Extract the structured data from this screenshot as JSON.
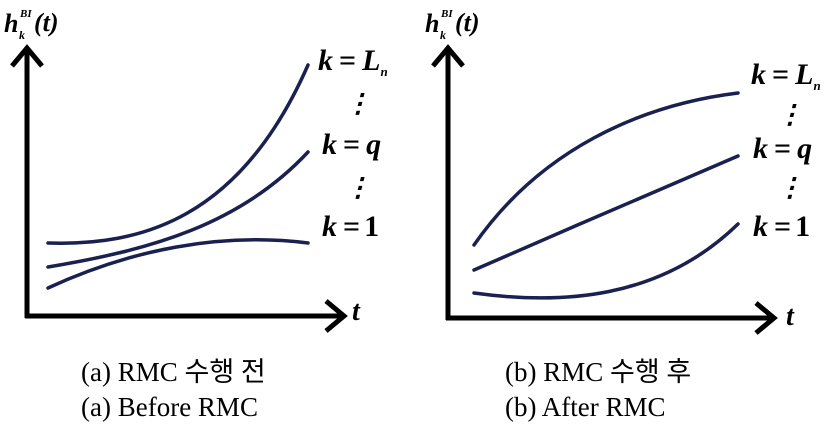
{
  "panels": [
    {
      "y_axis_label": "h",
      "y_axis_sup": "BI",
      "y_axis_sub": "k",
      "y_axis_arg": "(t)",
      "x_axis_label": "t",
      "series_labels": {
        "top": {
          "lhs": "k",
          "eq": "=",
          "rhs": "L",
          "rhs_sub": "n"
        },
        "mid": {
          "lhs": "k",
          "eq": "=",
          "rhs": "q"
        },
        "bot": {
          "lhs": "k",
          "eq": "=",
          "rhs": "1"
        }
      },
      "caption_ko": "(a) RMC 수행 전",
      "caption_en": "(a) Before RMC"
    },
    {
      "y_axis_label": "h",
      "y_axis_sup": "BI",
      "y_axis_sub": "k",
      "y_axis_arg": "(t)",
      "x_axis_label": "t",
      "series_labels": {
        "top": {
          "lhs": "k",
          "eq": "=",
          "rhs": "L",
          "rhs_sub": "n"
        },
        "mid": {
          "lhs": "k",
          "eq": "=",
          "rhs": "q"
        },
        "bot": {
          "lhs": "k",
          "eq": "=",
          "rhs": "1"
        }
      },
      "caption_ko": "(b) RMC 수행 후",
      "caption_en": "(b) After RMC"
    }
  ],
  "colors": {
    "curve": "#1a2150",
    "axis": "#000000"
  }
}
